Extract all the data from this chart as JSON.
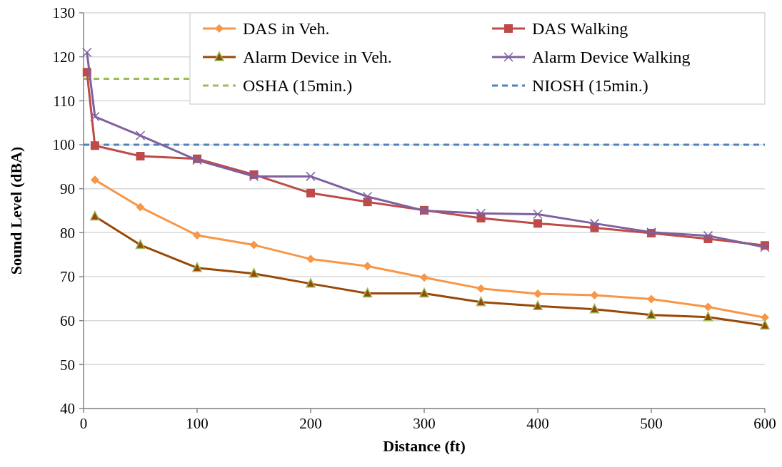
{
  "chart_data": {
    "type": "line",
    "xlabel": "Distance (ft)",
    "ylabel": "Sound Level (dBA)",
    "xlim": [
      0,
      600
    ],
    "xticks": [
      0,
      100,
      200,
      300,
      400,
      500,
      600
    ],
    "ylim": [
      40,
      130
    ],
    "yticks": [
      40,
      50,
      60,
      70,
      80,
      90,
      100,
      110,
      120,
      130
    ],
    "grid": "y",
    "legend": "top right",
    "series": [
      {
        "name": "DAS in Veh.",
        "color": "#f79646",
        "marker": "diamond",
        "x": [
          10,
          50,
          100,
          150,
          200,
          250,
          300,
          350,
          400,
          450,
          500,
          550,
          600
        ],
        "values": [
          92,
          85.8,
          79.4,
          77.2,
          74,
          72.4,
          69.8,
          67.3,
          66.1,
          65.8,
          64.9,
          63.1,
          60.7
        ]
      },
      {
        "name": "DAS Walking",
        "color": "#be4b48",
        "marker": "square",
        "x": [
          3,
          10,
          50,
          100,
          150,
          200,
          250,
          300,
          350,
          400,
          450,
          500,
          550,
          600
        ],
        "values": [
          116.5,
          99.8,
          97.4,
          96.8,
          93.2,
          89,
          87,
          85.1,
          83.3,
          82.1,
          81.1,
          79.9,
          78.6,
          77.1
        ]
      },
      {
        "name": "Alarm Device in Veh.",
        "color": "#984807",
        "marker": "triangle",
        "x": [
          10,
          50,
          100,
          150,
          200,
          250,
          300,
          350,
          400,
          450,
          500,
          550,
          600
        ],
        "values": [
          83.7,
          77.2,
          72,
          70.7,
          68.4,
          66.2,
          66.2,
          64.2,
          63.3,
          62.6,
          61.3,
          60.8,
          58.9
        ]
      },
      {
        "name": "Alarm Device Walking",
        "color": "#7f60a0",
        "marker": "cross",
        "x": [
          3,
          10,
          50,
          100,
          150,
          200,
          250,
          300,
          350,
          400,
          450,
          500,
          550,
          600
        ],
        "values": [
          121,
          106.4,
          102.1,
          96.5,
          92.8,
          92.8,
          88.2,
          85,
          84.4,
          84.2,
          82.1,
          80.1,
          79.3,
          76.7
        ]
      }
    ],
    "ref_lines": [
      {
        "axis": "y",
        "value": 115,
        "label": "OSHA (15min.)",
        "color": "#9bbb59",
        "line_style": "dashed"
      },
      {
        "axis": "y",
        "value": 100,
        "label": "NIOSH (15min.)",
        "color": "#4f81bd",
        "line_style": "dashed"
      }
    ]
  }
}
